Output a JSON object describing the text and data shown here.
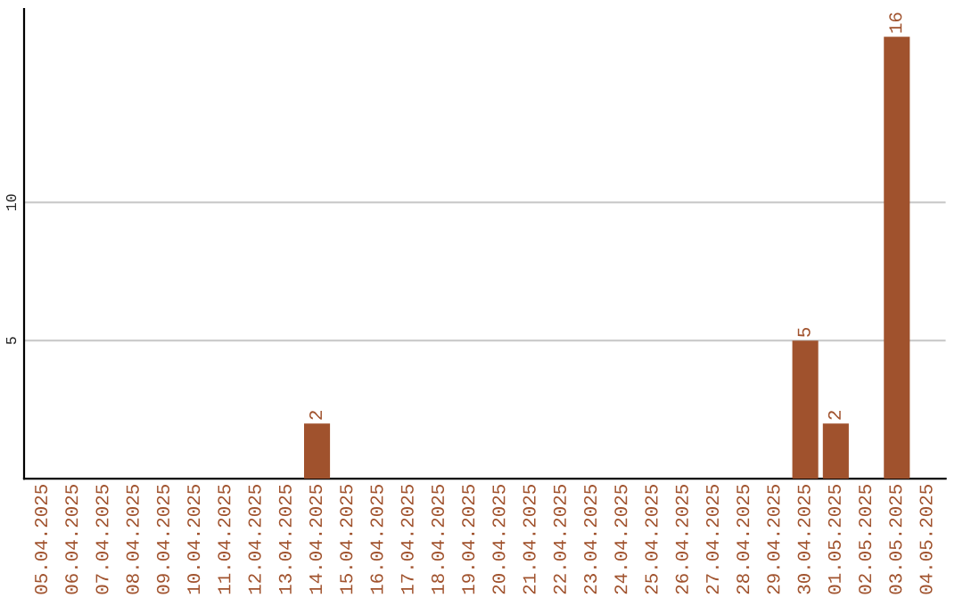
{
  "chart_data": {
    "type": "bar",
    "categories": [
      "05.04.2025",
      "06.04.2025",
      "07.04.2025",
      "08.04.2025",
      "09.04.2025",
      "10.04.2025",
      "11.04.2025",
      "12.04.2025",
      "13.04.2025",
      "14.04.2025",
      "15.04.2025",
      "16.04.2025",
      "17.04.2025",
      "18.04.2025",
      "19.04.2025",
      "20.04.2025",
      "21.04.2025",
      "22.04.2025",
      "23.04.2025",
      "24.04.2025",
      "25.04.2025",
      "26.04.2025",
      "27.04.2025",
      "28.04.2025",
      "29.04.2025",
      "30.04.2025",
      "01.05.2025",
      "02.05.2025",
      "03.05.2025",
      "04.05.2025"
    ],
    "values": [
      0,
      0,
      0,
      0,
      0,
      0,
      0,
      0,
      0,
      2,
      0,
      0,
      0,
      0,
      0,
      0,
      0,
      0,
      0,
      0,
      0,
      0,
      0,
      0,
      0,
      5,
      2,
      0,
      16,
      0
    ],
    "value_labels": [
      null,
      null,
      null,
      null,
      null,
      null,
      null,
      null,
      null,
      "2",
      null,
      null,
      null,
      null,
      null,
      null,
      null,
      null,
      null,
      null,
      null,
      null,
      null,
      null,
      null,
      "5",
      "2",
      null,
      "16",
      null
    ],
    "color": "#a0522d",
    "ylim": [
      0,
      17
    ],
    "yticks": [
      5,
      10
    ],
    "grid": "y"
  }
}
